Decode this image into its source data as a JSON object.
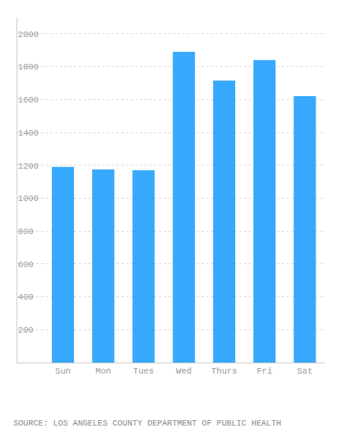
{
  "chart_data": {
    "type": "bar",
    "categories": [
      "Sun",
      "Mon",
      "Tues",
      "Wed",
      "Thurs",
      "Fri",
      "Sat"
    ],
    "values": [
      1190,
      1175,
      1170,
      1890,
      1715,
      1840,
      1620
    ],
    "color": "#36a9fc",
    "ylim": [
      0,
      2100
    ],
    "yticks": [
      200,
      400,
      600,
      800,
      1000,
      1200,
      1400,
      1600,
      1800,
      2000
    ],
    "grid": true,
    "annotations": [
      "SOURCE: LOS ANGELES COUNTY DEPARTMENT OF PUBLIC HEALTH"
    ]
  }
}
